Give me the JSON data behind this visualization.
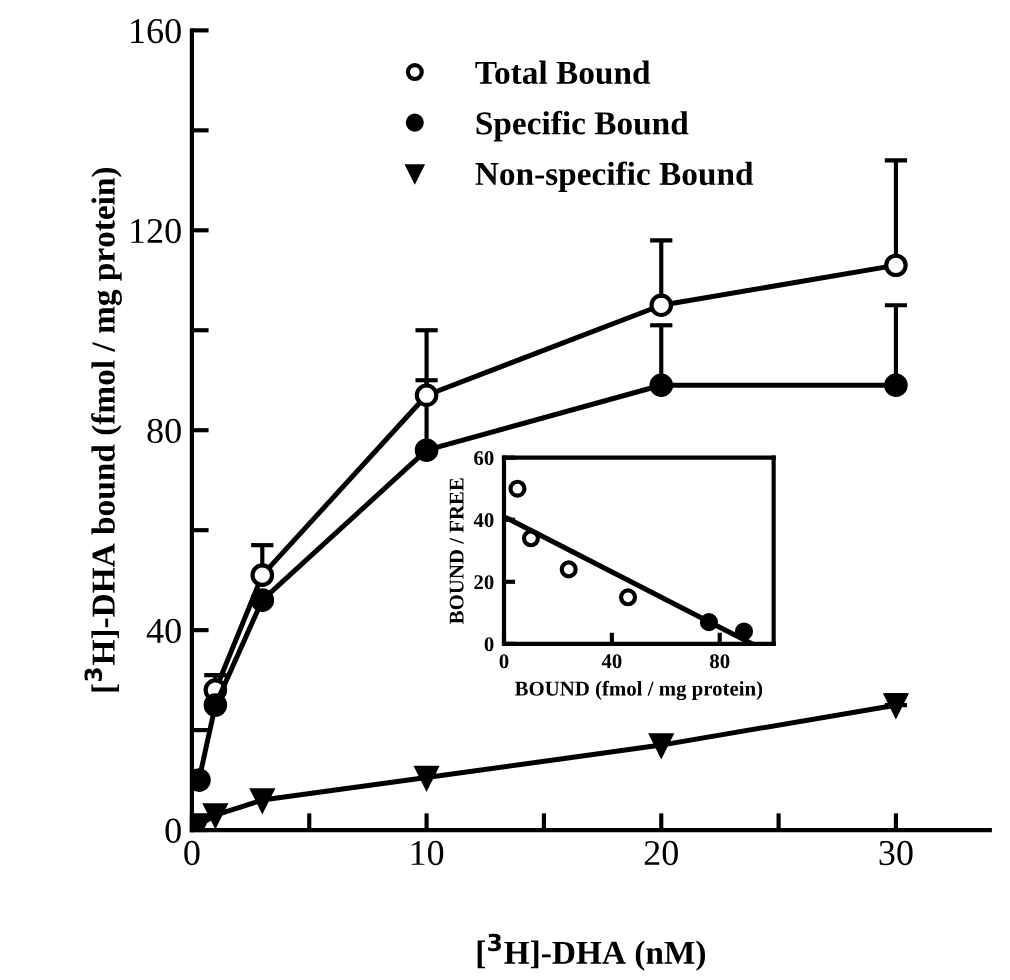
{
  "chart_data": [
    {
      "type": "line",
      "xlabel": "[$^{3}$H]-DHA (nM)",
      "ylabel": "[$^{3}$H]-DHA bound (fmol / mg protein)",
      "xlim": [
        0,
        34
      ],
      "ylim": [
        0,
        160
      ],
      "xticks": [
        0,
        {
          "value": 5,
          "label": null
        },
        10,
        {
          "value": 15,
          "label": null
        },
        20,
        {
          "value": 25,
          "label": null
        },
        30
      ],
      "yticks": [
        0,
        {
          "value": 20,
          "label": null
        },
        40,
        {
          "value": 60,
          "label": null
        },
        80,
        {
          "value": 100,
          "label": null
        },
        120,
        {
          "value": 140,
          "label": null
        },
        160
      ],
      "legend": "top left",
      "grid": false,
      "series": [
        {
          "name": "Total Bound",
          "color": "#ffffff",
          "marker": "circle",
          "x": [
            1,
            3,
            10,
            20,
            30
          ],
          "values": [
            28,
            51,
            87,
            105,
            113
          ],
          "errors": [
            [
              28,
              31
            ],
            [
              51,
              57
            ],
            [
              87,
              100
            ],
            [
              105,
              118
            ],
            [
              113,
              134
            ]
          ]
        },
        {
          "name": "Specific Bound",
          "color": "#000000",
          "marker": "circle",
          "x": [
            0.3,
            1,
            3,
            10,
            20,
            30
          ],
          "values": [
            10,
            25,
            46,
            76,
            89,
            89
          ],
          "errors": [
            null,
            null,
            null,
            [
              76,
              90
            ],
            [
              89,
              101
            ],
            [
              89,
              105
            ]
          ]
        },
        {
          "name": "Non-specific Bound",
          "color": "#000000",
          "marker": "triangle",
          "x": [
            0.3,
            1,
            3,
            10,
            20,
            30
          ],
          "values": [
            1,
            3,
            6,
            10.5,
            17,
            25
          ],
          "errors": [
            null,
            null,
            null,
            null,
            null,
            [
              25,
              27
            ]
          ]
        }
      ]
    },
    {
      "type": "scatter",
      "xlabel": "BOUND (fmol / mg protein)",
      "ylabel": "BOUND / FREE",
      "xlim": [
        0,
        100
      ],
      "ylim": [
        0,
        60
      ],
      "xticks": [
        0,
        40,
        80
      ],
      "yticks": [
        0,
        20,
        40,
        60
      ],
      "grid": false,
      "legend": false,
      "series": [
        {
          "color": "#ffffff",
          "marker": "circle",
          "x": [
            5,
            10,
            24,
            46
          ],
          "values": [
            50,
            34,
            24,
            15
          ]
        },
        {
          "color": "#000000",
          "marker": "circle",
          "x": [
            76,
            89
          ],
          "values": [
            7,
            4
          ]
        },
        {
          "type": "line",
          "color": "#000000",
          "marker": "none",
          "x": [
            0,
            92
          ],
          "values": [
            41,
            0
          ]
        }
      ]
    }
  ]
}
